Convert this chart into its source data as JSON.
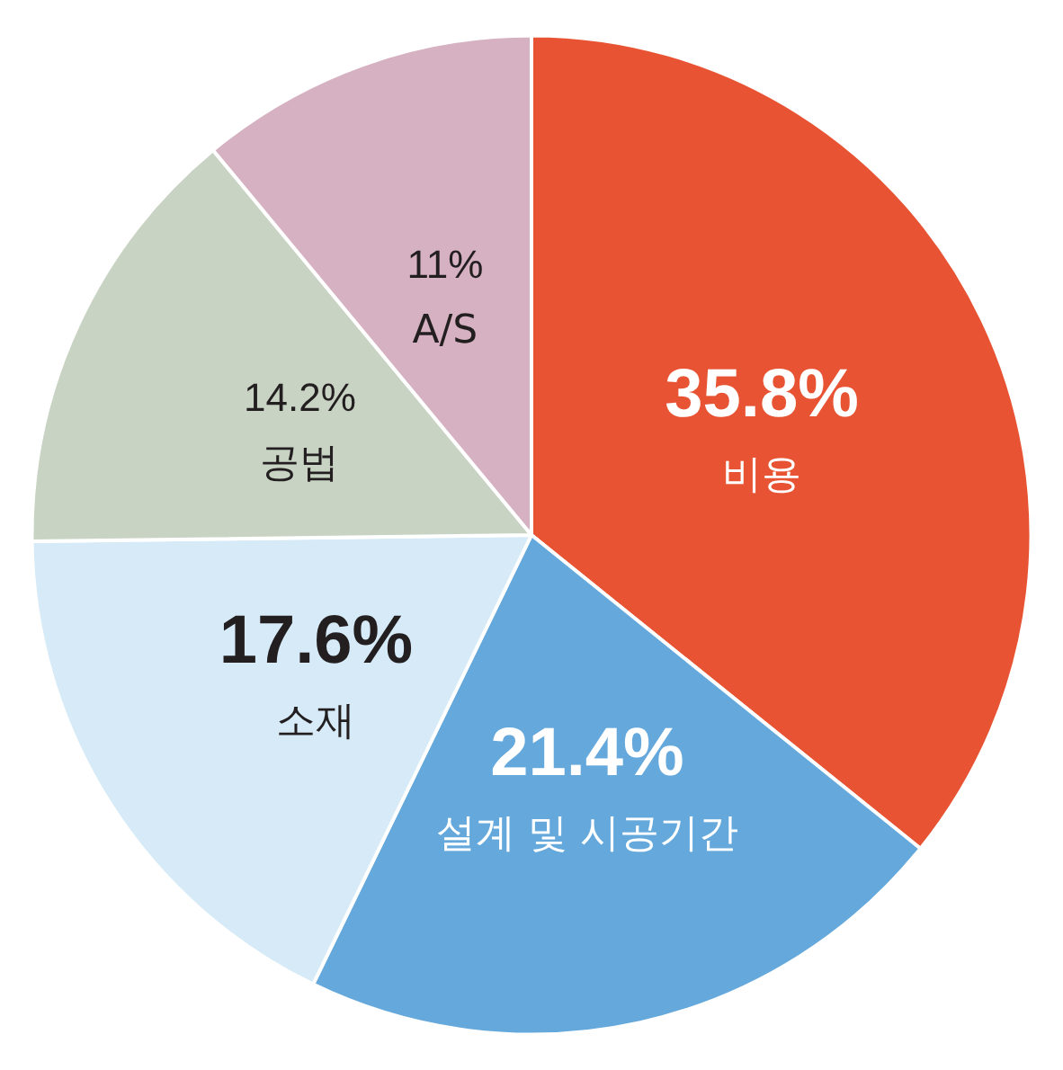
{
  "chart_data": {
    "type": "pie",
    "categories": [
      "비용",
      "설계 및 시공기간",
      "소재",
      "공법",
      "A/S"
    ],
    "values": [
      35.8,
      21.4,
      17.6,
      14.2,
      11
    ],
    "value_labels": [
      "35.8%",
      "21.4%",
      "17.6%",
      "14.2%",
      "11%"
    ],
    "colors": [
      "#e85433",
      "#65a9dc",
      "#d6ebf7",
      "#c9d3c3",
      "#d6b1c1"
    ],
    "legend": false
  }
}
